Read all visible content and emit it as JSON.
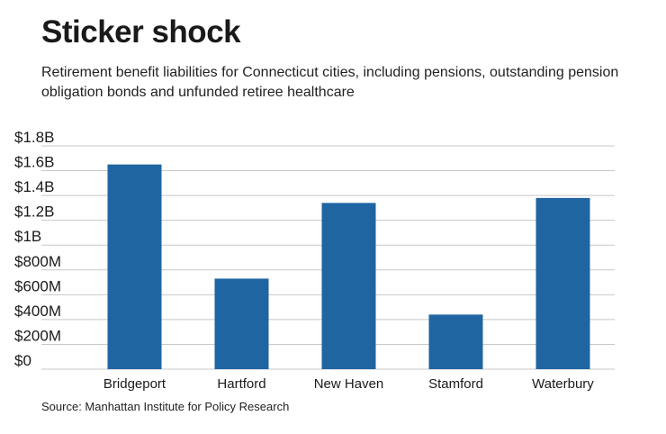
{
  "header": {
    "title": "Sticker shock",
    "subtitle": "Retirement benefit liabilities for Connecticut cities, including pensions, outstanding pension obligation bonds and unfunded retiree healthcare"
  },
  "footer": {
    "source": "Source: Manhattan Institute for Policy Research"
  },
  "colors": {
    "bar": "#1f65a2",
    "grid": "#c8c8c8"
  },
  "chart_data": {
    "type": "bar",
    "title": "Sticker shock",
    "subtitle": "Retirement benefit liabilities for Connecticut cities, including pensions, outstanding pension obligation bonds and unfunded retiree healthcare",
    "xlabel": "",
    "ylabel": "",
    "categories": [
      "Bridgeport",
      "Hartford",
      "New Haven",
      "Stamford",
      "Waterbury"
    ],
    "values": [
      1.65,
      0.73,
      1.34,
      0.44,
      1.38
    ],
    "units": "billions USD",
    "ylim": [
      0,
      1.8
    ],
    "yticks": [
      0,
      0.2,
      0.4,
      0.6,
      0.8,
      1.0,
      1.2,
      1.4,
      1.6,
      1.8
    ],
    "ytick_labels": [
      "$0",
      "$200M",
      "$400M",
      "$600M",
      "$800M",
      "$1B",
      "$1.2B",
      "$1.4B",
      "$1.6B",
      "$1.8B"
    ],
    "grid": true,
    "legend": "none"
  }
}
